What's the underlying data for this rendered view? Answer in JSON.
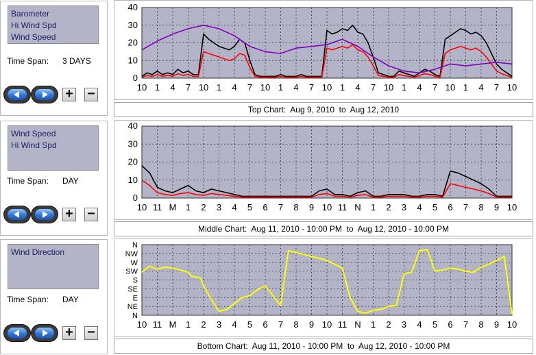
{
  "panels": [
    {
      "id": "top",
      "series_list": [
        "Barometer",
        "Hi Wind Spd",
        "Wind Speed"
      ],
      "time_span_label": "Time Span:",
      "time_span_value": "3 DAYS",
      "caption": "Top Chart:  Aug 9, 2010  to  Aug 12, 2010"
    },
    {
      "id": "middle",
      "series_list": [
        "Wind Speed",
        "Hi Wind Spd"
      ],
      "time_span_label": "Time Span:",
      "time_span_value": "DAY",
      "caption": "Middle Chart:  Aug 11, 2010 - 10:00 PM  to  Aug 12, 2010 - 10:00 PM"
    },
    {
      "id": "bottom",
      "series_list": [
        "Wind Direction"
      ],
      "time_span_label": "Time Span:",
      "time_span_value": "DAY",
      "caption": "Bottom Chart:  Aug 11, 2010 - 10:00 PM  to  Aug 12, 2010 - 10:00 PM"
    }
  ],
  "controls": {
    "back_icon": "left-arrow-icon",
    "forward_icon": "right-arrow-icon",
    "plus_label": "+",
    "minus_label": "−"
  },
  "colors": {
    "plot_bg": "#b4b4c8",
    "hi_wind": "#000000",
    "wind_speed": "#ff0000",
    "barometer": "#8000c0",
    "direction": "#ffff00"
  },
  "chart_data": [
    {
      "type": "line",
      "ylim": [
        0,
        40
      ],
      "yticks": [
        "0",
        "10",
        "20",
        "30",
        "40"
      ],
      "xticks": [
        "10",
        "1",
        "4",
        "7",
        "10",
        "1",
        "4",
        "7",
        "10",
        "1",
        "4",
        "7",
        "10",
        "1",
        "4",
        "7",
        "10",
        "1",
        "4",
        "7",
        "10",
        "1",
        "4",
        "7",
        "10"
      ],
      "x_range": [
        0,
        72
      ],
      "series": [
        {
          "name": "Hi Wind Spd",
          "color": "#000000",
          "x": [
            0,
            1,
            2,
            3,
            4,
            5,
            6,
            7,
            8,
            9,
            10,
            11,
            12,
            13,
            14,
            15,
            16,
            17,
            18,
            19,
            20,
            21,
            22,
            23,
            24,
            25,
            26,
            27,
            28,
            29,
            30,
            31,
            32,
            33,
            34,
            35,
            36,
            37,
            38,
            39,
            40,
            41,
            42,
            43,
            44,
            45,
            46,
            47,
            48,
            49,
            50,
            51,
            52,
            53,
            54,
            55,
            56,
            57,
            58,
            59,
            60,
            61,
            62,
            63,
            64,
            65,
            66,
            67,
            68,
            69,
            70,
            71,
            72
          ],
          "values": [
            1,
            3,
            2,
            4,
            2,
            3,
            2,
            5,
            3,
            4,
            2,
            2,
            25,
            22,
            20,
            18,
            17,
            16,
            18,
            22,
            20,
            10,
            2,
            1,
            1,
            1,
            1,
            2,
            1,
            1,
            1,
            2,
            1,
            1,
            1,
            1,
            27,
            25,
            26,
            28,
            27,
            30,
            26,
            25,
            20,
            12,
            3,
            2,
            1,
            1,
            4,
            3,
            2,
            1,
            3,
            5,
            4,
            2,
            1,
            22,
            24,
            26,
            28,
            27,
            25,
            26,
            24,
            20,
            14,
            8,
            5,
            3,
            1
          ]
        },
        {
          "name": "Wind Speed",
          "color": "#ff0000",
          "x": [
            0,
            1,
            2,
            3,
            4,
            5,
            6,
            7,
            8,
            9,
            10,
            11,
            12,
            13,
            14,
            15,
            16,
            17,
            18,
            19,
            20,
            21,
            22,
            23,
            24,
            25,
            26,
            27,
            28,
            29,
            30,
            31,
            32,
            33,
            34,
            35,
            36,
            37,
            38,
            39,
            40,
            41,
            42,
            43,
            44,
            45,
            46,
            47,
            48,
            49,
            50,
            51,
            52,
            53,
            54,
            55,
            56,
            57,
            58,
            59,
            60,
            61,
            62,
            63,
            64,
            65,
            66,
            67,
            68,
            69,
            70,
            71,
            72
          ],
          "values": [
            0.5,
            1.5,
            1,
            2,
            1,
            1.5,
            1,
            2.5,
            1.5,
            2,
            1,
            1,
            15,
            14,
            13,
            12,
            11,
            10,
            11,
            14,
            13,
            6,
            1,
            0.5,
            0.5,
            0.5,
            0.5,
            1,
            0.5,
            0.5,
            0.5,
            1,
            0.5,
            0.5,
            0.5,
            0.5,
            17,
            16,
            17,
            18,
            17,
            19,
            16,
            15,
            12,
            7,
            1.5,
            1,
            0.5,
            0.5,
            2,
            1.5,
            1,
            0.5,
            1.5,
            2.5,
            2,
            1,
            0.5,
            14,
            16,
            17,
            18,
            17,
            16,
            17,
            15,
            12,
            8,
            4,
            2.5,
            1.5,
            0.5
          ]
        },
        {
          "name": "Barometer",
          "color": "#8000c0",
          "x": [
            0,
            3,
            6,
            9,
            12,
            15,
            18,
            21,
            24,
            27,
            30,
            33,
            36,
            39,
            42,
            45,
            48,
            51,
            54,
            57,
            60,
            63,
            66,
            69,
            72
          ],
          "values": [
            16,
            21,
            25,
            28,
            30,
            28,
            24,
            18,
            15,
            14,
            17,
            18,
            19,
            22,
            18,
            12,
            7,
            4,
            3,
            5,
            8,
            7,
            8,
            9,
            8
          ]
        }
      ]
    },
    {
      "type": "line",
      "ylim": [
        0,
        40
      ],
      "yticks": [
        "0",
        "10",
        "20",
        "30",
        "40"
      ],
      "xticks": [
        "10",
        "11",
        "M",
        "1",
        "2",
        "3",
        "4",
        "5",
        "6",
        "7",
        "8",
        "9",
        "10",
        "11",
        "N",
        "1",
        "2",
        "3",
        "4",
        "5",
        "6",
        "7",
        "8",
        "9",
        "10"
      ],
      "x_range": [
        0,
        24
      ],
      "series": [
        {
          "name": "Hi Wind Spd",
          "color": "#000000",
          "x": [
            0,
            0.5,
            1,
            1.5,
            2,
            2.5,
            3,
            3.5,
            4,
            4.5,
            5,
            5.5,
            6,
            6.5,
            7,
            7.5,
            8,
            8.5,
            9,
            9.5,
            10,
            10.5,
            11,
            11.5,
            12,
            12.5,
            13,
            13.5,
            14,
            14.5,
            15,
            15.5,
            16,
            16.5,
            17,
            17.5,
            18,
            18.5,
            19,
            19.5,
            20,
            20.5,
            21,
            21.5,
            22,
            22.5,
            23,
            23.5,
            24
          ],
          "values": [
            18,
            14,
            6,
            4,
            3,
            5,
            7,
            4,
            3,
            5,
            4,
            3,
            2,
            1,
            1,
            1,
            1,
            1,
            1,
            1,
            1,
            1,
            1,
            4,
            5,
            2,
            2,
            1,
            3,
            4,
            1,
            1,
            2,
            2,
            2,
            1,
            1,
            2,
            2,
            1,
            15,
            14,
            12,
            10,
            8,
            5,
            1,
            1,
            1
          ]
        },
        {
          "name": "Wind Speed",
          "color": "#ff0000",
          "x": [
            0,
            0.5,
            1,
            1.5,
            2,
            2.5,
            3,
            3.5,
            4,
            4.5,
            5,
            5.5,
            6,
            6.5,
            7,
            7.5,
            8,
            8.5,
            9,
            9.5,
            10,
            10.5,
            11,
            11.5,
            12,
            12.5,
            13,
            13.5,
            14,
            14.5,
            15,
            15.5,
            16,
            16.5,
            17,
            17.5,
            18,
            18.5,
            19,
            19.5,
            20,
            20.5,
            21,
            21.5,
            22,
            22.5,
            23,
            23.5,
            24
          ],
          "values": [
            10,
            7,
            3,
            2,
            1.5,
            2.5,
            3,
            2,
            1.5,
            2.5,
            2,
            1.5,
            1,
            0.5,
            0.5,
            0.5,
            0.5,
            0.5,
            0.5,
            0.5,
            0.5,
            0.5,
            0.5,
            2,
            2.5,
            1,
            1,
            0.5,
            1.5,
            2,
            0.5,
            0.5,
            1,
            1,
            1,
            0.5,
            0.5,
            1,
            1,
            0.5,
            8,
            7,
            6,
            5,
            4,
            2.5,
            0.5,
            0.5,
            0.5
          ]
        }
      ]
    },
    {
      "type": "line",
      "yticks": [
        "N",
        "NE",
        "E",
        "SE",
        "S",
        "SW",
        "W",
        "NW",
        "N"
      ],
      "ylim": [
        0,
        360
      ],
      "xticks": [
        "10",
        "11",
        "M",
        "1",
        "2",
        "3",
        "4",
        "5",
        "6",
        "7",
        "8",
        "9",
        "10",
        "11",
        "N",
        "1",
        "2",
        "3",
        "4",
        "5",
        "6",
        "7",
        "8",
        "9",
        "10"
      ],
      "x_range": [
        0,
        24
      ],
      "series": [
        {
          "name": "Wind Direction",
          "color": "#ffff00",
          "x": [
            0,
            0.5,
            1,
            1.5,
            2,
            2.5,
            3,
            3.2,
            3.8,
            4,
            4.5,
            5,
            5.5,
            6,
            6.5,
            7,
            7.5,
            8,
            8.5,
            9,
            9.5,
            10,
            10.5,
            11,
            11.5,
            12,
            12.5,
            13,
            13.5,
            14,
            14.5,
            15,
            15.5,
            16,
            16.5,
            17,
            17.5,
            18,
            18.5,
            19,
            19.5,
            20,
            20.5,
            21,
            21.5,
            22,
            22.5,
            23,
            23.5,
            24
          ],
          "values": [
            220,
            250,
            235,
            245,
            240,
            230,
            220,
            200,
            190,
            150,
            80,
            20,
            30,
            60,
            90,
            100,
            130,
            150,
            100,
            50,
            330,
            320,
            310,
            300,
            290,
            280,
            260,
            240,
            90,
            20,
            10,
            25,
            30,
            45,
            50,
            210,
            220,
            330,
            335,
            225,
            230,
            240,
            235,
            225,
            220,
            245,
            260,
            280,
            300,
            5
          ]
        }
      ]
    }
  ]
}
